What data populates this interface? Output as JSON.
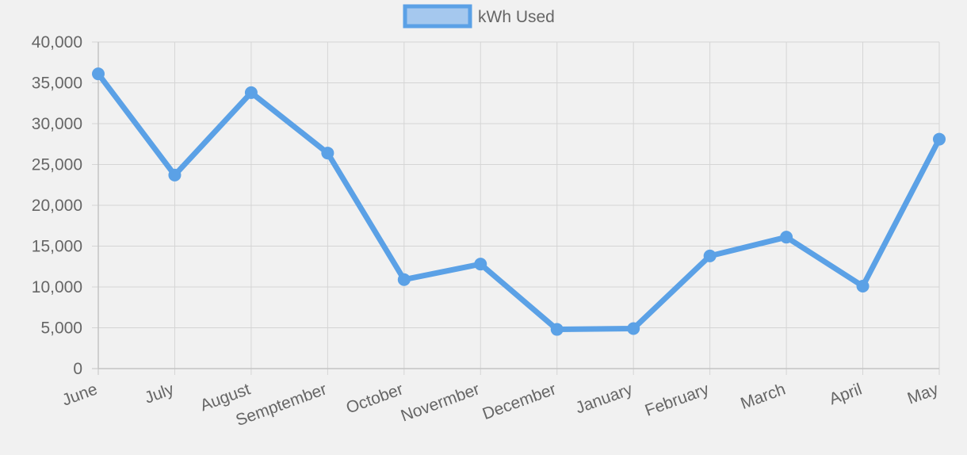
{
  "chart_data": {
    "type": "line",
    "categories": [
      "June",
      "July",
      "August",
      "Semptember",
      "October",
      "Novermber",
      "December",
      "January",
      "February",
      "March",
      "April",
      "May"
    ],
    "series": [
      {
        "name": "kWh Used",
        "values": [
          36100,
          23700,
          33800,
          26400,
          10900,
          12800,
          4800,
          4900,
          13800,
          16100,
          10100,
          28100
        ]
      }
    ],
    "ylim": [
      0,
      40000
    ],
    "yticks": [
      "0",
      "5,000",
      "10,000",
      "15,000",
      "20,000",
      "25,000",
      "30,000",
      "35,000",
      "40,000"
    ],
    "grid": true,
    "legend": "top-center",
    "colors": {
      "line": "#5ba1e6",
      "legend_fill": "#a5c8ee",
      "grid": "#d5d5d5",
      "axis": "#c4c4c4",
      "text": "#666666",
      "background": "#f1f1f1"
    }
  }
}
